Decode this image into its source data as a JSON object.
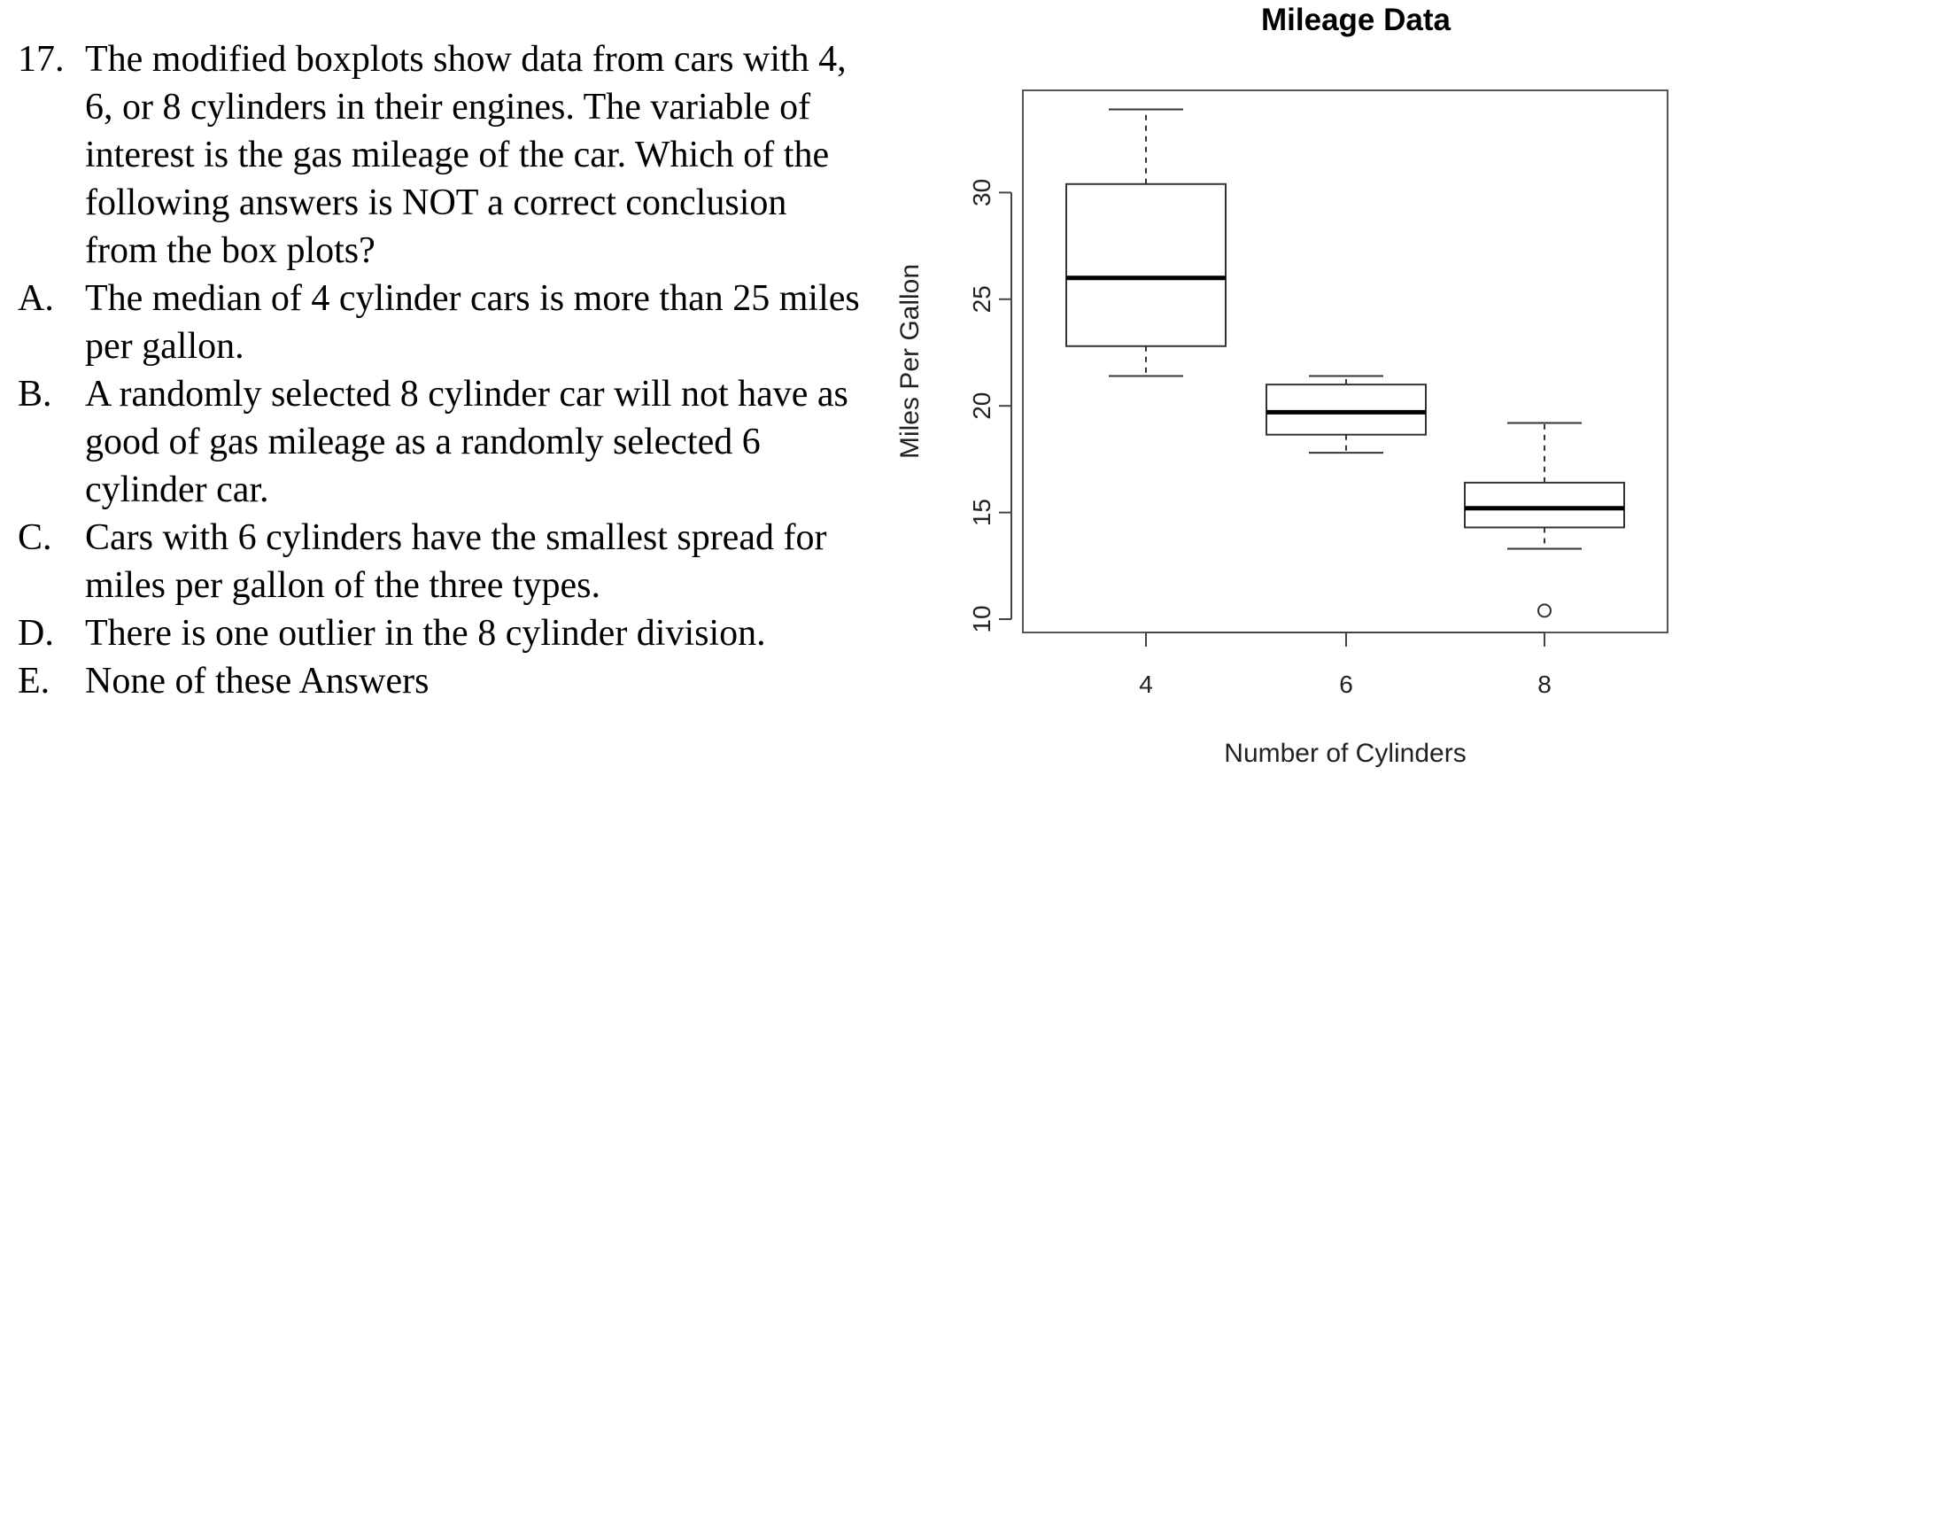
{
  "question": {
    "number": "17.",
    "stem": "The modified boxplots show data from cars with 4, 6, or 8 cylinders in their engines. The variable of interest is the gas mileage of the car. Which of the following answers is NOT a correct conclusion from the box plots?",
    "options": [
      {
        "label": "A.",
        "text": "The median of 4 cylinder cars is more than 25 miles per gallon."
      },
      {
        "label": "B.",
        "text": "A randomly selected 8 cylinder car will not have as good of gas mileage as a randomly selected 6 cylinder car."
      },
      {
        "label": "C.",
        "text": "Cars with 6 cylinders have the smallest spread for miles per gallon of the three types."
      },
      {
        "label": "D.",
        "text": "There is one outlier in the 8 cylinder division."
      },
      {
        "label": "E.",
        "text": "None of these Answers"
      }
    ]
  },
  "chart_data": {
    "type": "boxplot",
    "title": "Mileage Data",
    "xlabel": "Number of Cylinders",
    "ylabel": "Miles Per Gallon",
    "categories": [
      "4",
      "6",
      "8"
    ],
    "yticks": [
      10,
      15,
      20,
      25,
      30
    ],
    "ylim": [
      9.5,
      35
    ],
    "grid": false,
    "boxes": [
      {
        "category": "4",
        "whisker_low": 21.4,
        "q1": 22.8,
        "median": 26.0,
        "q3": 30.4,
        "whisker_high": 33.9,
        "outliers": []
      },
      {
        "category": "6",
        "whisker_low": 17.8,
        "q1": 18.65,
        "median": 19.7,
        "q3": 21.0,
        "whisker_high": 21.4,
        "outliers": []
      },
      {
        "category": "8",
        "whisker_low": 13.3,
        "q1": 14.3,
        "median": 15.2,
        "q3": 16.4,
        "whisker_high": 19.2,
        "outliers": [
          10.4
        ]
      }
    ]
  }
}
